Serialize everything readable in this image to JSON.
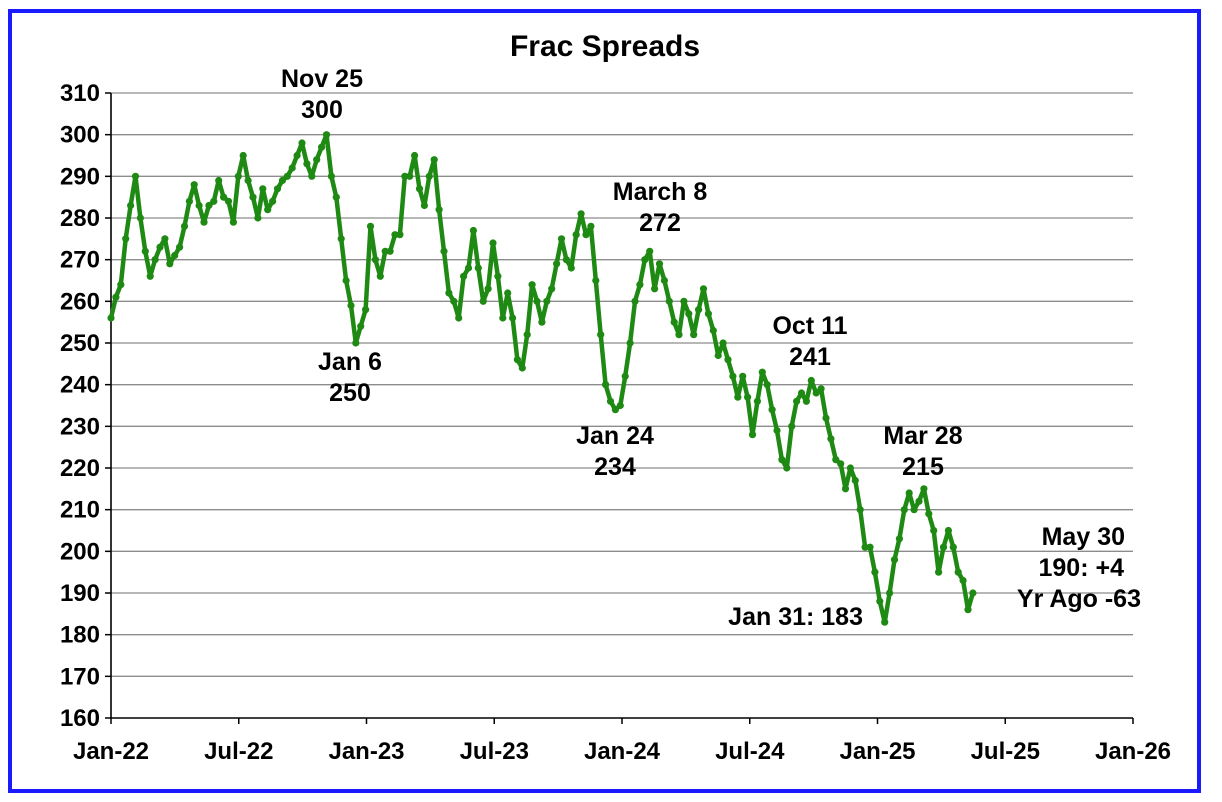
{
  "chart_data": {
    "type": "line",
    "title": "Frac Spreads",
    "xlabel": "",
    "ylabel": "",
    "ylim": [
      160,
      310
    ],
    "yticks": [
      160,
      170,
      180,
      190,
      200,
      210,
      220,
      230,
      240,
      250,
      260,
      270,
      280,
      290,
      300,
      310
    ],
    "xticks": [
      "Jan-22",
      "Jul-22",
      "Jan-23",
      "Jul-23",
      "Jan-24",
      "Jul-24",
      "Jan-25",
      "Jul-25",
      "Jan-26"
    ],
    "x_start": "Jan-22",
    "x_end": "Jan-26",
    "grid": true,
    "legend": "none",
    "line_color": "#1f8a13",
    "series": [
      {
        "values": [
          256,
          261,
          264,
          275,
          283,
          290,
          280,
          272,
          266,
          270,
          273,
          275,
          269,
          271,
          273,
          278,
          284,
          288,
          283,
          279,
          283,
          284,
          289,
          285,
          284,
          279,
          290,
          295,
          289,
          285,
          280,
          287,
          282,
          284,
          287,
          289,
          290,
          292,
          295,
          298,
          293,
          290,
          294,
          297,
          300,
          290,
          285,
          275,
          265,
          259,
          250,
          254,
          258,
          278,
          270,
          266,
          272,
          272,
          276,
          276,
          290,
          290,
          295,
          287,
          283,
          290,
          294,
          282,
          272,
          262,
          260,
          256,
          266,
          268,
          277,
          268,
          260,
          263,
          274,
          266,
          256,
          262,
          256,
          246,
          244,
          252,
          264,
          260,
          255,
          260,
          263,
          269,
          275,
          270,
          268,
          276,
          281,
          276,
          278,
          265,
          252,
          240,
          236,
          234,
          235,
          242,
          250,
          260,
          264,
          270,
          272,
          263,
          269,
          265,
          260,
          255,
          252,
          260,
          257,
          252,
          258,
          263,
          257,
          253,
          247,
          250,
          246,
          242,
          237,
          242,
          237,
          228,
          236,
          243,
          240,
          234,
          229,
          222,
          220,
          230,
          236,
          238,
          236,
          241,
          238,
          239,
          232,
          227,
          222,
          221,
          215,
          220,
          217,
          210,
          201,
          201,
          195,
          188,
          183,
          190,
          198,
          203,
          210,
          214,
          210,
          212,
          215,
          209,
          205,
          195,
          201,
          205,
          201,
          195,
          193,
          186,
          190
        ]
      }
    ],
    "annotations": [
      {
        "lines": [
          "Nov 25",
          "300"
        ]
      },
      {
        "lines": [
          "Jan 6",
          "250"
        ]
      },
      {
        "lines": [
          "March 8",
          "272"
        ]
      },
      {
        "lines": [
          "Jan 24",
          "234"
        ]
      },
      {
        "lines": [
          "Oct 11",
          "241"
        ]
      },
      {
        "lines": [
          "Mar 28",
          "215"
        ]
      },
      {
        "lines": [
          "Jan 31: 183"
        ]
      },
      {
        "lines": [
          "May 30",
          "190: +4",
          "Yr Ago -63"
        ]
      }
    ]
  }
}
